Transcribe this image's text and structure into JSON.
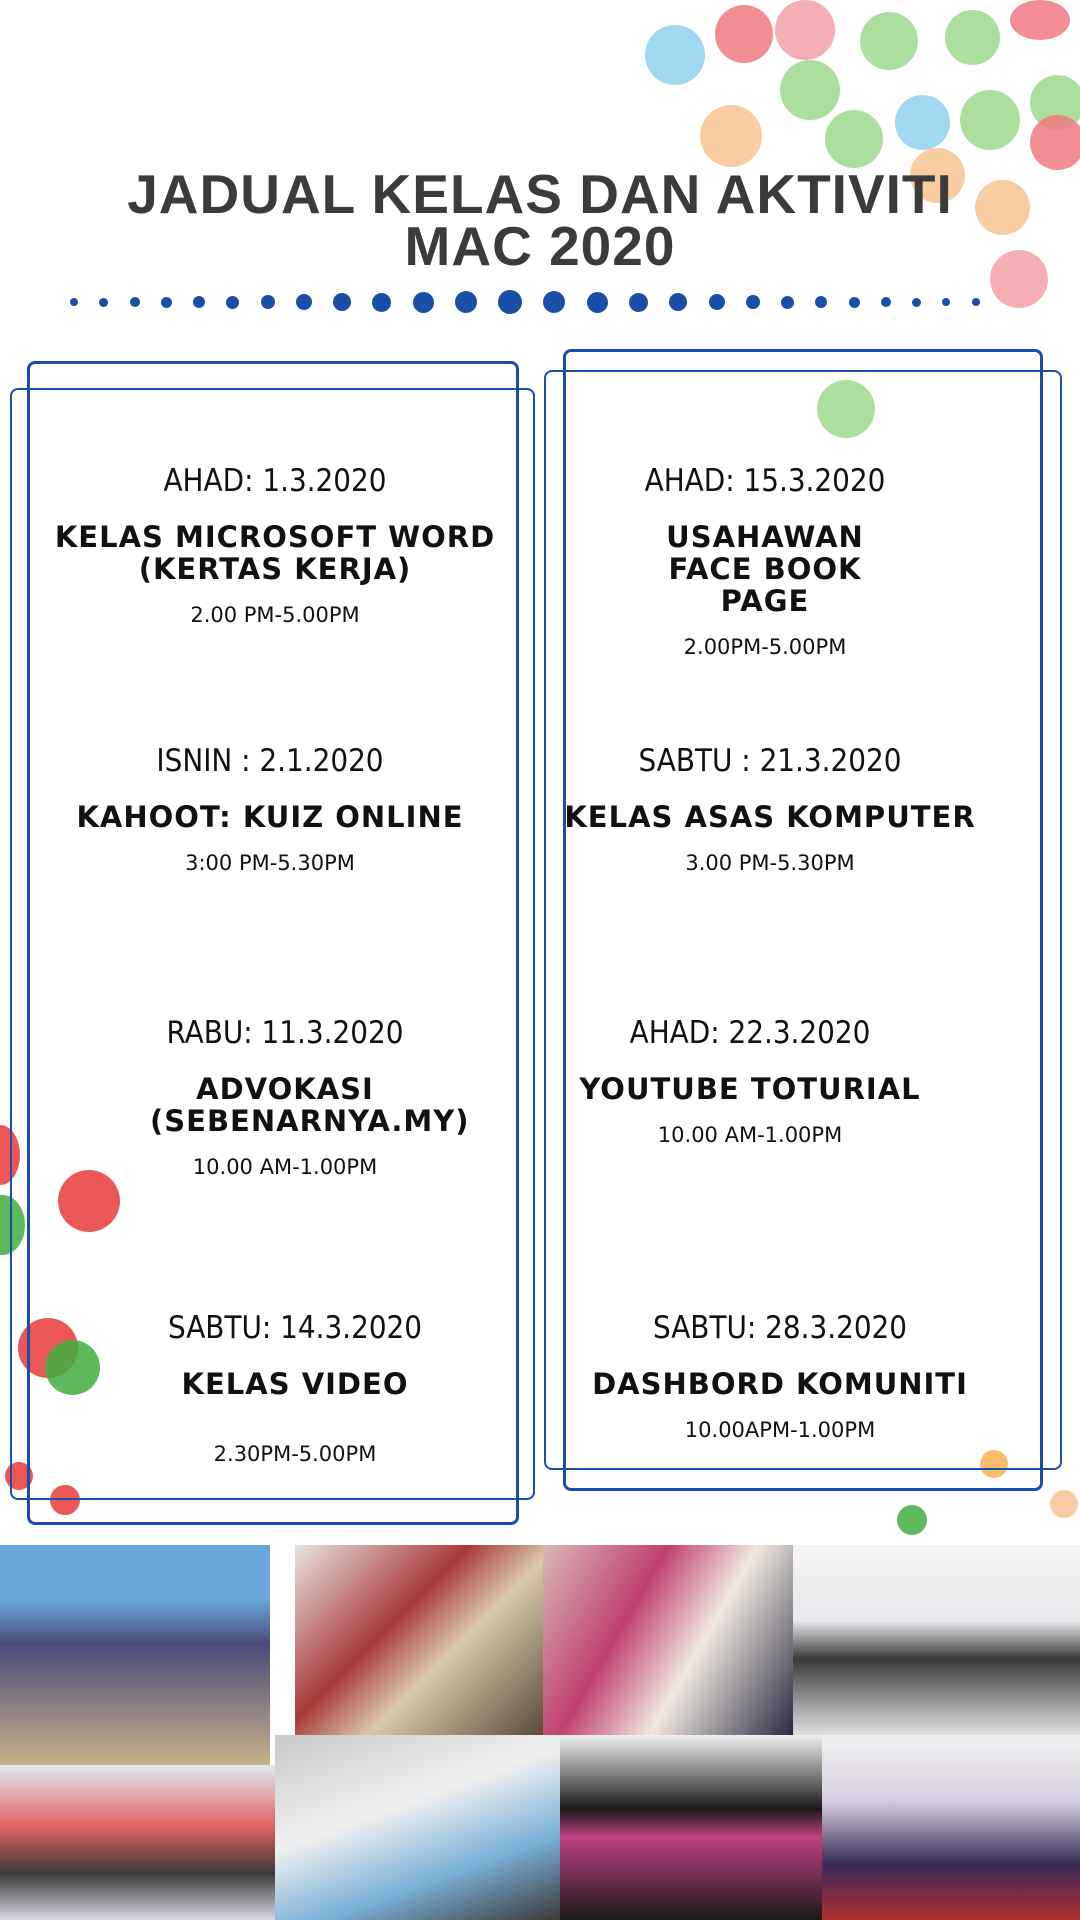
{
  "title": {
    "line1": "JADUAL KELAS DAN AKTIVITI",
    "line2": "MAC 2020"
  },
  "colors": {
    "accent": "#1a4fa8",
    "title": "#3b3b3b"
  },
  "left_column": [
    {
      "date": "AHAD: 1.3.2020",
      "name": "KELAS MICROSOFT WORD (KERTAS KERJA)",
      "time": "2.00 PM-5.00PM"
    },
    {
      "date": "ISNIN : 2.1.2020",
      "name": "KAHOOT: KUIZ ONLINE",
      "time": "3:00 PM-5.30PM"
    },
    {
      "date": "RABU: 11.3.2020",
      "name": "ADVOKASI (SEBENARNYA.MY)",
      "time": "10.00 AM-1.00PM"
    },
    {
      "date": "SABTU: 14.3.2020",
      "name": "KELAS VIDEO",
      "time": "2.30PM-5.00PM"
    }
  ],
  "right_column": [
    {
      "date": "AHAD: 15.3.2020",
      "name": "USAHAWAN FACE BOOK PAGE",
      "time": "2.00PM-5.00PM"
    },
    {
      "date": "SABTU : 21.3.2020",
      "name": "KELAS ASAS KOMPUTER",
      "time": "3.00 PM-5.30PM"
    },
    {
      "date": "AHAD: 22.3.2020",
      "name": "YOUTUBE TOTURIAL",
      "time": "10.00 AM-1.00PM"
    },
    {
      "date": "SABTU: 28.3.2020",
      "name": "DASHBORD KOMUNITI",
      "time": "10.00APM-1.00PM"
    }
  ]
}
